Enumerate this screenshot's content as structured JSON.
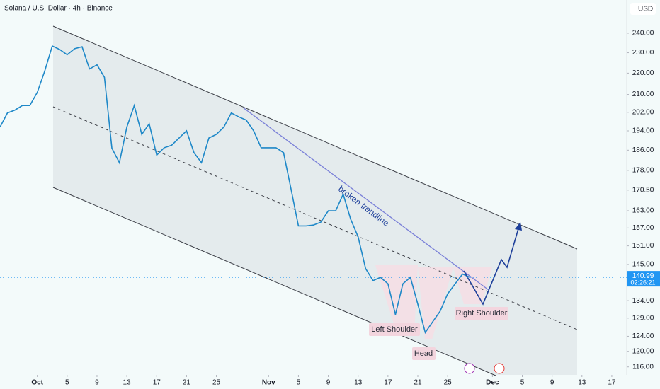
{
  "chart_data": {
    "type": "line",
    "title": "Solana / U.S. Dollar · 4h · Binance",
    "currency": "USD",
    "log_scale": true,
    "color": "#1e88c8",
    "x": [
      "09-26",
      "09-27",
      "09-28",
      "09-29",
      "09-30",
      "10-01",
      "10-02",
      "10-03",
      "10-04",
      "10-05",
      "10-06",
      "10-07",
      "10-08",
      "10-09",
      "10-10",
      "10-11",
      "10-12",
      "10-13",
      "10-14",
      "10-15",
      "10-16",
      "10-17",
      "10-18",
      "10-19",
      "10-20",
      "10-21",
      "10-22",
      "10-23",
      "10-24",
      "10-25",
      "10-26",
      "10-27",
      "10-28",
      "10-29",
      "10-30",
      "10-31",
      "11-01",
      "11-02",
      "11-03",
      "11-04",
      "11-05",
      "11-06",
      "11-07",
      "11-08",
      "11-09",
      "11-10",
      "11-11",
      "11-12",
      "11-13",
      "11-14",
      "11-15",
      "11-16",
      "11-17",
      "11-18",
      "11-19",
      "11-20",
      "11-21",
      "11-22",
      "11-23",
      "11-24",
      "11-25",
      "11-26",
      "11-27",
      "11-28"
    ],
    "values": [
      195.6,
      201.7,
      203,
      205,
      205,
      211,
      221,
      233.4,
      231.6,
      229,
      232,
      233,
      222,
      224,
      218,
      186.8,
      181,
      195.6,
      205,
      192.5,
      197,
      184,
      187,
      188,
      191,
      194,
      185,
      181,
      191,
      192.5,
      195.6,
      201.7,
      200,
      198.6,
      194,
      187,
      187,
      187,
      185,
      171,
      157.7,
      157.7,
      158,
      159,
      163,
      163,
      169,
      160,
      154,
      143.7,
      140,
      141,
      139,
      130,
      139,
      141,
      133,
      125,
      128,
      131,
      136,
      139,
      142,
      140.99
    ],
    "last_price": 140.99,
    "countdown": "02:26:21",
    "xlim": [
      "09-26",
      "12-19"
    ],
    "xticks": [
      {
        "value": "10-01",
        "label": "Oct"
      },
      {
        "value": "10-05",
        "label": "5"
      },
      {
        "value": "10-09",
        "label": "9"
      },
      {
        "value": "10-13",
        "label": "13"
      },
      {
        "value": "10-17",
        "label": "17"
      },
      {
        "value": "10-21",
        "label": "21"
      },
      {
        "value": "10-25",
        "label": "25"
      },
      {
        "value": "11-01",
        "label": "Nov"
      },
      {
        "value": "11-05",
        "label": "5"
      },
      {
        "value": "11-09",
        "label": "9"
      },
      {
        "value": "11-13",
        "label": "13"
      },
      {
        "value": "11-17",
        "label": "17"
      },
      {
        "value": "11-21",
        "label": "21"
      },
      {
        "value": "11-25",
        "label": "25"
      },
      {
        "value": "12-01",
        "label": "Dec"
      },
      {
        "value": "12-05",
        "label": "5"
      },
      {
        "value": "12-09",
        "label": "9"
      },
      {
        "value": "12-13",
        "label": "13"
      },
      {
        "value": "12-17",
        "label": "17"
      }
    ],
    "ylim": [
      114,
      258
    ],
    "yticks": [
      {
        "value": 240,
        "label": "240.00"
      },
      {
        "value": 230,
        "label": "230.00"
      },
      {
        "value": 220,
        "label": "220.00"
      },
      {
        "value": 210,
        "label": "210.00"
      },
      {
        "value": 202,
        "label": "202.00"
      },
      {
        "value": 194,
        "label": "194.00"
      },
      {
        "value": 186,
        "label": "186.00"
      },
      {
        "value": 178,
        "label": "178.00"
      },
      {
        "value": 170.5,
        "label": "170.50"
      },
      {
        "value": 163,
        "label": "163.00"
      },
      {
        "value": 157,
        "label": "157.00"
      },
      {
        "value": 151,
        "label": "151.00"
      },
      {
        "value": 145,
        "label": "145.00"
      },
      {
        "value": 134,
        "label": "134.00"
      },
      {
        "value": 129,
        "label": "129.00"
      },
      {
        "value": 124,
        "label": "124.00"
      },
      {
        "value": 120,
        "label": "120.00"
      },
      {
        "value": 116,
        "label": "116.00"
      }
    ],
    "annotations": [
      "broken trendline",
      "Left Shoulder",
      "Head",
      "Right Shoulder"
    ]
  }
}
